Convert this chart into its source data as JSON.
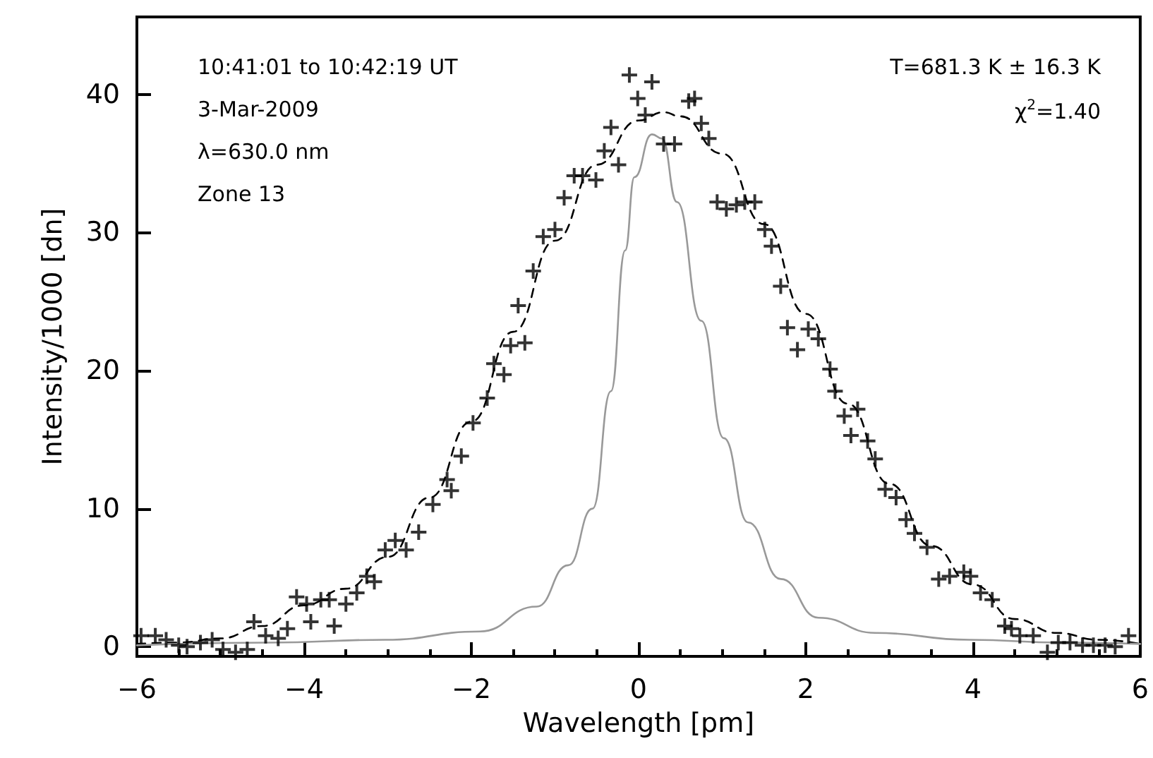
{
  "chart_data": {
    "type": "scatter",
    "xlabel": "Wavelength [pm]",
    "ylabel": "Intensity/1000 [dn]",
    "annotations": [
      "10:41:01 to 10:42:19 UT",
      "3-Mar-2009",
      "λ=630.0 nm",
      "Zone 13",
      "T=681.3 K ± 16.3 K",
      "χ$^{2}$=1.40"
    ],
    "xlim": [
      -6,
      6
    ],
    "xticks": [
      -6,
      -4,
      -2,
      0,
      2,
      4,
      6
    ],
    "ylim": [
      -0.7,
      45.6
    ],
    "yticks": [
      0,
      10,
      20,
      30,
      40
    ],
    "series": [
      {
        "color": "#000000",
        "marker": "cross",
        "x": [
          -5.95,
          -5.78,
          -5.65,
          -5.5,
          -5.4,
          -5.24,
          -5.1,
          -4.97,
          -4.82,
          -4.68,
          -4.6,
          -4.46,
          -4.31,
          -4.2,
          -4.09,
          -3.97,
          -3.92,
          -3.8,
          -3.7,
          -3.64,
          -3.5,
          -3.37,
          -3.25,
          -3.16,
          -3.03,
          -2.91,
          -2.78,
          -2.63,
          -2.46,
          -2.29,
          -2.24,
          -2.12,
          -1.98,
          -1.81,
          -1.73,
          -1.61,
          -1.53,
          -1.44,
          -1.36,
          -1.26,
          -1.14,
          -1.0,
          -0.89,
          -0.77,
          -0.67,
          -0.51,
          -0.41,
          -0.33,
          -0.24,
          -0.11,
          -0.01,
          0.08,
          0.16,
          0.3,
          0.43,
          0.6,
          0.67,
          0.75,
          0.84,
          0.94,
          1.05,
          1.17,
          1.27,
          1.39,
          1.51,
          1.59,
          1.7,
          1.78,
          1.9,
          2.03,
          2.15,
          2.29,
          2.35,
          2.46,
          2.54,
          2.62,
          2.74,
          2.83,
          2.95,
          3.08,
          3.2,
          3.3,
          3.45,
          3.59,
          3.72,
          3.89,
          3.97,
          4.09,
          4.23,
          4.38,
          4.46,
          4.56,
          4.72,
          4.89,
          5.02,
          5.16,
          5.31,
          5.44,
          5.58,
          5.7,
          5.86
        ],
        "values": [
          0.8,
          0.8,
          0.5,
          0.1,
          0.0,
          0.3,
          0.5,
          -0.2,
          -0.4,
          -0.2,
          1.8,
          0.8,
          0.6,
          1.3,
          3.6,
          3.1,
          1.8,
          3.4,
          3.4,
          1.5,
          3.1,
          3.9,
          5.1,
          4.7,
          7.0,
          7.7,
          7.0,
          8.3,
          10.3,
          12.1,
          11.3,
          13.8,
          16.2,
          18.0,
          20.5,
          19.7,
          21.8,
          24.7,
          22.0,
          27.2,
          29.7,
          30.2,
          32.5,
          34.1,
          34.1,
          33.8,
          35.9,
          37.6,
          34.9,
          41.4,
          39.7,
          38.5,
          40.9,
          36.4,
          36.4,
          39.5,
          39.7,
          37.9,
          36.8,
          32.2,
          31.7,
          32.0,
          32.2,
          32.2,
          30.2,
          29.0,
          26.1,
          23.1,
          21.5,
          23.0,
          22.3,
          20.1,
          18.5,
          16.7,
          15.3,
          17.2,
          14.9,
          13.6,
          11.4,
          10.8,
          9.2,
          8.2,
          7.2,
          4.9,
          5.1,
          5.4,
          5.1,
          3.9,
          3.4,
          1.5,
          1.3,
          0.8,
          0.8,
          -0.4,
          0.3,
          0.3,
          0.1,
          0.1,
          0.1,
          0.0,
          0.8
        ]
      },
      {
        "type": "line",
        "color": "#000000",
        "line_style": "dashed",
        "marker": "none",
        "x": [
          -6,
          -5.5,
          -5,
          -4.5,
          -4,
          -3.5,
          -3,
          -2.5,
          -2,
          -1.5,
          -1,
          -0.5,
          0,
          0.3,
          0.5,
          1,
          1.5,
          2,
          2.5,
          3,
          3.5,
          4,
          4.5,
          5,
          5.5,
          6
        ],
        "values": [
          0.2,
          0.3,
          0.6,
          1.5,
          3.0,
          4.2,
          6.5,
          10.8,
          16.3,
          22.8,
          29.4,
          34.9,
          38.1,
          38.7,
          38.4,
          35.7,
          30.6,
          24.1,
          17.6,
          11.8,
          7.3,
          4.5,
          2.0,
          1.0,
          0.5,
          0.2
        ]
      },
      {
        "type": "line",
        "color": "#999999",
        "line_style": "solid",
        "marker": "none",
        "x": [
          -6,
          -4.43,
          -3.03,
          -1.9,
          -1.22,
          -0.84,
          -0.55,
          -0.33,
          -0.16,
          -0.05,
          0.16,
          0.28,
          0.46,
          0.75,
          1.02,
          1.31,
          1.7,
          2.15,
          2.83,
          3.96,
          5.07,
          6
        ],
        "values": [
          0.1,
          0.3,
          0.5,
          1.1,
          2.9,
          5.9,
          10.0,
          18.5,
          28.7,
          34.0,
          37.1,
          36.8,
          32.2,
          23.6,
          15.1,
          9.0,
          4.9,
          2.1,
          1.0,
          0.5,
          0.3,
          0.2
        ]
      }
    ]
  }
}
